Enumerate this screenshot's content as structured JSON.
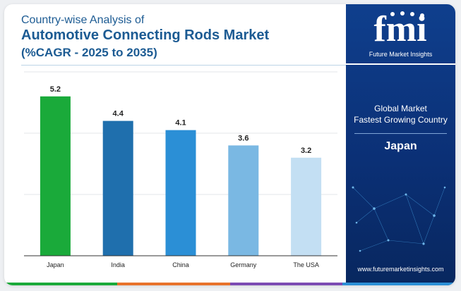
{
  "title": {
    "line1": "Country-wise Analysis of",
    "line2": "Automotive Connecting Rods Market",
    "line3": "(%CAGR - 2025 to 2035)"
  },
  "chart_data": {
    "type": "bar",
    "categories": [
      "Japan",
      "India",
      "China",
      "Germany",
      "The USA"
    ],
    "values": [
      5.2,
      4.4,
      4.1,
      3.6,
      3.2
    ],
    "colors": [
      "#1aaa3a",
      "#1f6fad",
      "#2b8fd6",
      "#7ab8e3",
      "#c3dff3"
    ],
    "ylim": [
      0,
      6
    ],
    "grid": true,
    "title": "",
    "xlabel": "",
    "ylabel": ""
  },
  "panel": {
    "logo_letters": "fmi",
    "logo_text": "Future Market Insights",
    "heading_line1": "Global Market",
    "heading_line2": "Fastest Growing Country",
    "country": "Japan",
    "url": "www.futuremarketinsights.com"
  },
  "strip_colors": [
    "#1aaa3a",
    "#e8732c",
    "#7c4bb3",
    "#2b8fd6"
  ]
}
